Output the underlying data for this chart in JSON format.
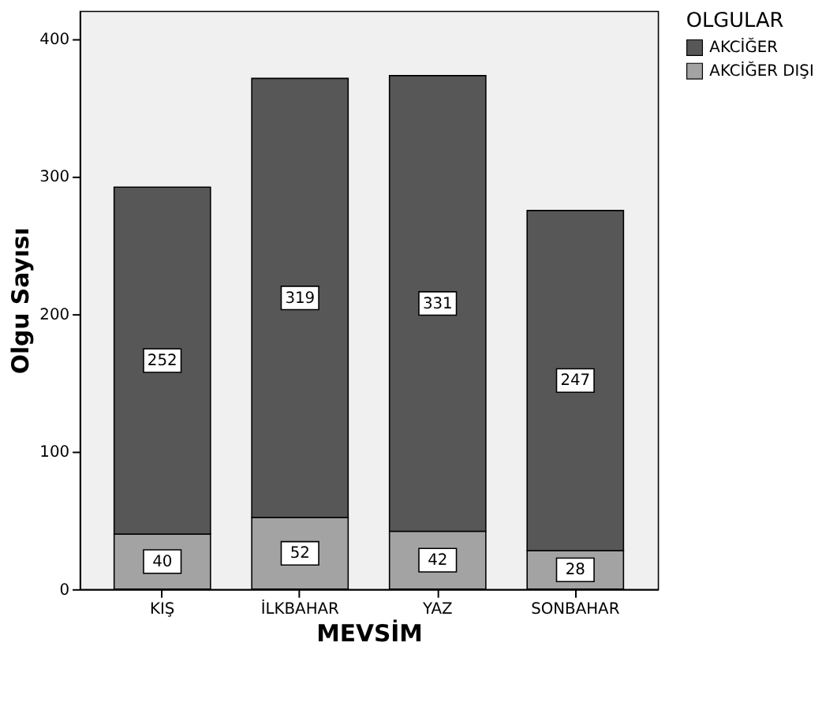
{
  "chart_data": {
    "type": "bar",
    "stacked": true,
    "xlabel": "MEVSİM",
    "ylabel": "Olgu Sayısı",
    "legend_title": "OLGULAR",
    "legend": "top right",
    "categories": [
      "KIŞ",
      "İLKBAHAR",
      "YAZ",
      "SONBAHAR"
    ],
    "series": [
      {
        "name": "AKCİĞER DIŞI",
        "color": "#a3a3a3",
        "values": [
          40,
          52,
          42,
          28
        ]
      },
      {
        "name": "AKCİĞER",
        "color": "#575757",
        "values": [
          252,
          319,
          331,
          247
        ]
      }
    ],
    "ylim": [
      0,
      420
    ],
    "yticks": [
      0,
      100,
      200,
      300,
      400
    ],
    "grid": false,
    "data_labels": true
  }
}
